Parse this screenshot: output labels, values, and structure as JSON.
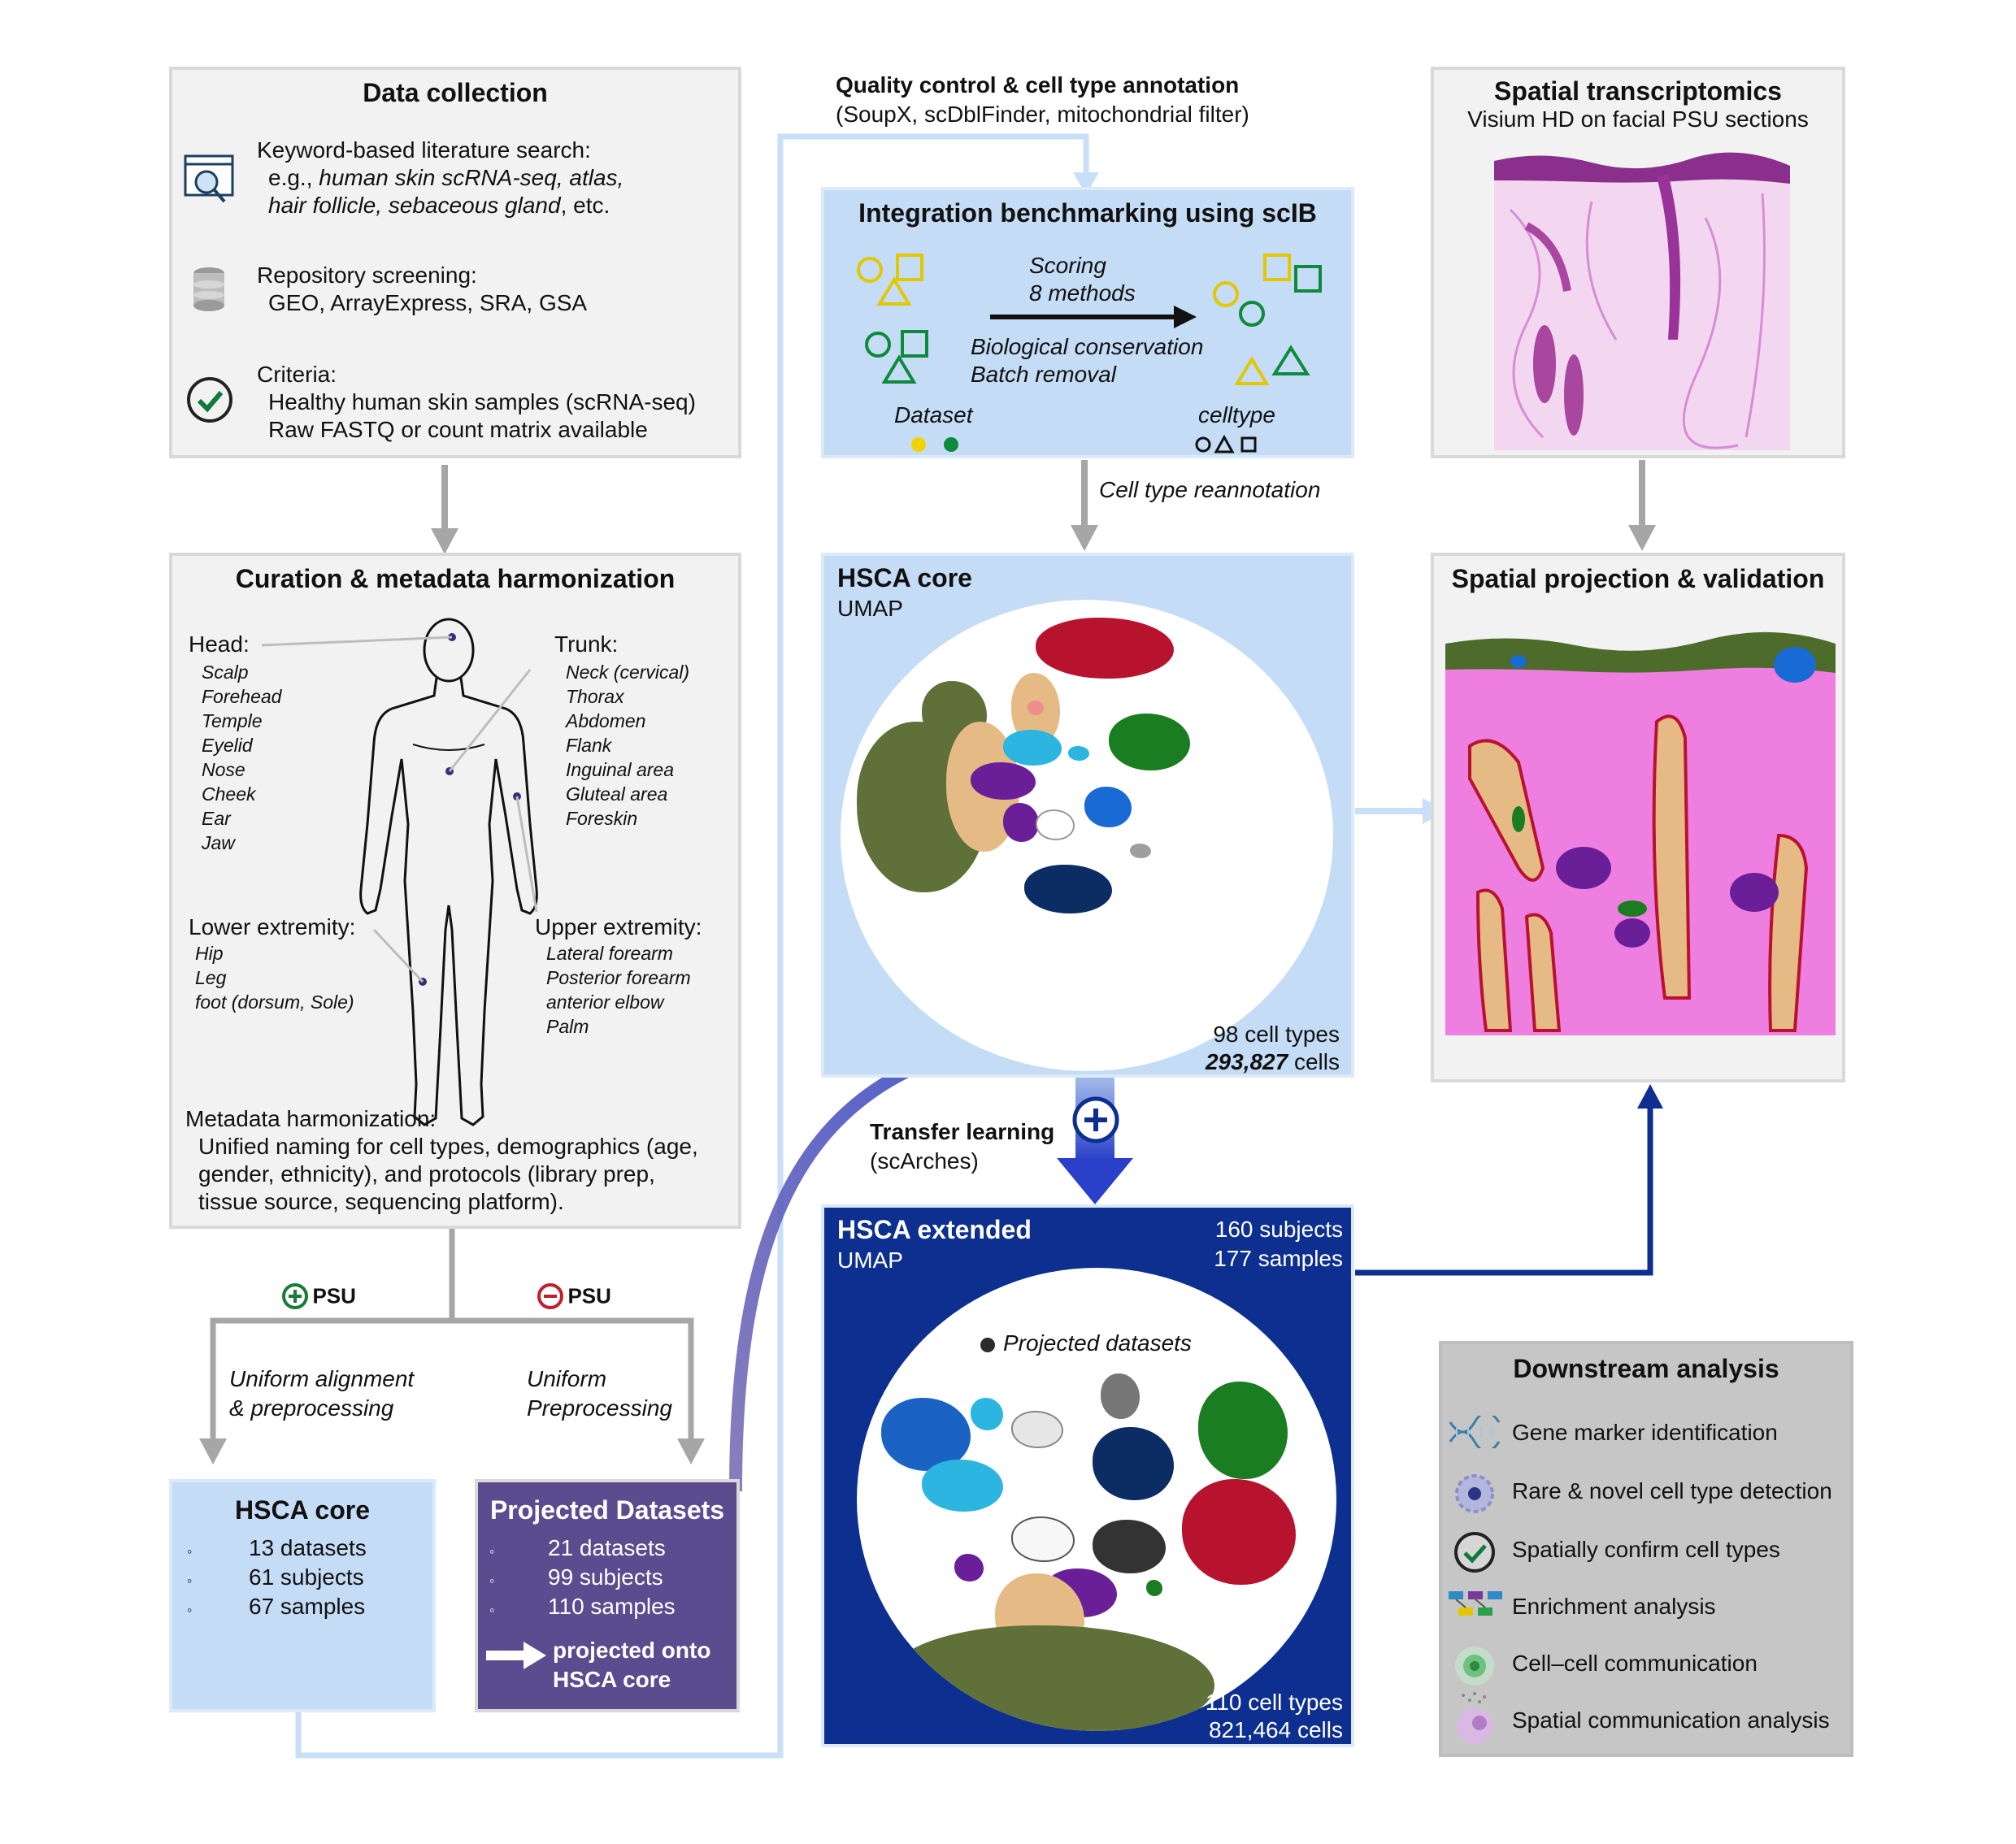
{
  "data_collection": {
    "title": "Data collection",
    "search_head": "Keyword-based literature search:",
    "search_eg_prefix": "e.g., ",
    "search_eg_terms": "human skin scRNA-seq, atlas,",
    "search_eg_terms2": "hair follicle, sebaceous gland",
    "search_eg_suffix": ", etc.",
    "repo_head": "Repository screening:",
    "repo_list": "GEO, ArrayExpress, SRA, GSA",
    "criteria_head": "Criteria:",
    "criteria_1": "Healthy human skin samples (scRNA-seq)",
    "criteria_2": "Raw FASTQ or count matrix available"
  },
  "curation": {
    "title": "Curation & metadata harmonization",
    "head_label": "Head:",
    "head_items": [
      "Scalp",
      "Forehead",
      "Temple",
      "Eyelid",
      "Nose",
      "Cheek",
      "Ear",
      "Jaw"
    ],
    "trunk_label": "Trunk:",
    "trunk_items": [
      "Neck (cervical)",
      "Thorax",
      "Abdomen",
      "Flank",
      "Inguinal area",
      "Gluteal area",
      "Foreskin"
    ],
    "lower_label": "Lower extremity:",
    "lower_items": [
      "Hip",
      "Leg",
      "foot (dorsum, Sole)"
    ],
    "upper_label": "Upper extremity:",
    "upper_items": [
      "Lateral forearm",
      "Posterior forearm",
      "anterior elbow",
      "Palm"
    ],
    "meta_head": "Metadata harmonization:",
    "meta_1": "Unified naming for cell types, demographics (age,",
    "meta_2": "gender, ethnicity), and protocols (library prep,",
    "meta_3": "tissue source, sequencing platform)."
  },
  "psu_split": {
    "plus_label": "PSU",
    "minus_label": "PSU",
    "left_1": "Uniform alignment",
    "left_2": "& preprocessing",
    "right_1": "Uniform",
    "right_2": "Preprocessing"
  },
  "hsca_core_box": {
    "title": "HSCA core",
    "bullet": "◦",
    "items": [
      "13 datasets",
      "61 subjects",
      "67 samples"
    ]
  },
  "projected_box": {
    "title": "Projected Datasets",
    "bullet": "◦",
    "items": [
      "21 datasets",
      "99 subjects",
      "110 samples"
    ],
    "arrow_text_1": "projected onto",
    "arrow_text_2": "HSCA core"
  },
  "qc": {
    "title": "Quality control & cell type annotation",
    "subtitle": "(SoupX, scDblFinder, mitochondrial filter)"
  },
  "benchmark": {
    "title": "Integration benchmarking using scIB",
    "scoring_1": "Scoring",
    "scoring_2": "8 methods",
    "bio": "Biological conservation",
    "batch": "Batch removal",
    "dataset_label": "Dataset",
    "celltype_label": "celltype",
    "dataset_colors": [
      "#f2d300",
      "#0f8a3c"
    ],
    "shape_color_yellow": "#f2d300",
    "shape_color_green": "#0f8a3c"
  },
  "reannotation": "Cell type reannotation",
  "hsca_core_umap": {
    "title": "HSCA core",
    "subtitle": "UMAP",
    "cell_types": "98 cell types",
    "cells": "293,827",
    "cells_suffix": " cells"
  },
  "transfer": {
    "title": "Transfer learning",
    "subtitle": "(scArches)"
  },
  "hsca_extended": {
    "title": "HSCA extended",
    "subtitle": "UMAP",
    "subjects": "160 subjects",
    "samples": "177 samples",
    "projected_legend": "Projected datasets",
    "cell_types": "110 cell types",
    "cells": "821,464 cells"
  },
  "spatial": {
    "title": "Spatial transcriptomics",
    "subtitle": "Visium HD on facial PSU sections"
  },
  "projection": {
    "title": "Spatial projection & validation"
  },
  "downstream": {
    "title": "Downstream analysis",
    "items": [
      {
        "label": "Gene marker identification",
        "icon": "dna-icon"
      },
      {
        "label": "Rare & novel cell type detection",
        "icon": "novel-cell-icon"
      },
      {
        "label": "Spatially confirm cell types",
        "icon": "check-icon"
      },
      {
        "label": "Enrichment analysis",
        "icon": "pathway-icon"
      },
      {
        "label": "Cell–cell communication",
        "icon": "signal-cell-icon"
      },
      {
        "label": "Spatial communication analysis",
        "icon": "spatial-signal-icon"
      }
    ]
  },
  "colors": {
    "light_blue": "#c5dcf6",
    "dark_blue": "#0d2f8f",
    "purple": "#5b4b8f",
    "gray_box": "#f2f2f2",
    "downstream_box": "#c6c6c6"
  }
}
